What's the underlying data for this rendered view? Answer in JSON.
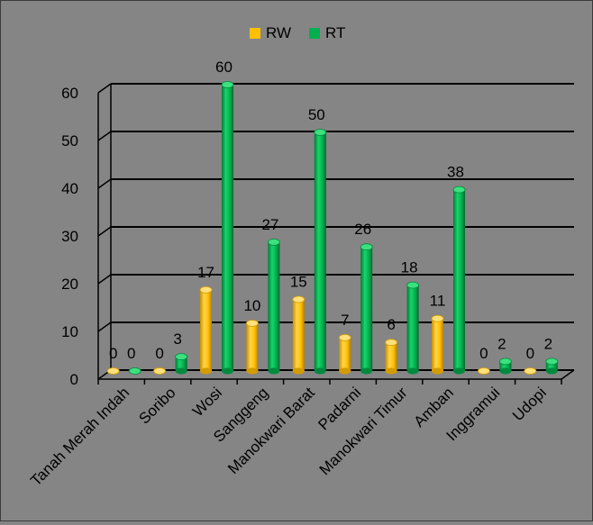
{
  "chart_data": {
    "type": "bar",
    "categories": [
      "Tanah Merah Indah",
      "Soribo",
      "Wosi",
      "Sanggeng",
      "Manokwari Barat",
      "Padarni",
      "Manokwari Timur",
      "Amban",
      "Inggramui",
      "Udopi"
    ],
    "series": [
      {
        "name": "RW",
        "values": [
          0,
          0,
          17,
          10,
          15,
          7,
          6,
          11,
          0,
          0
        ],
        "color": "#FFC000"
      },
      {
        "name": "RT",
        "values": [
          0,
          3,
          60,
          27,
          50,
          26,
          18,
          38,
          2,
          2
        ],
        "color": "#00B050"
      }
    ],
    "ylim": [
      0,
      60
    ],
    "yticks": [
      "0",
      "10",
      "20",
      "30",
      "40",
      "50",
      "60"
    ],
    "grid": true,
    "legend_position": "top-center",
    "background": "#858585"
  },
  "legend": {
    "rw_label": "RW",
    "rt_label": "RT"
  }
}
